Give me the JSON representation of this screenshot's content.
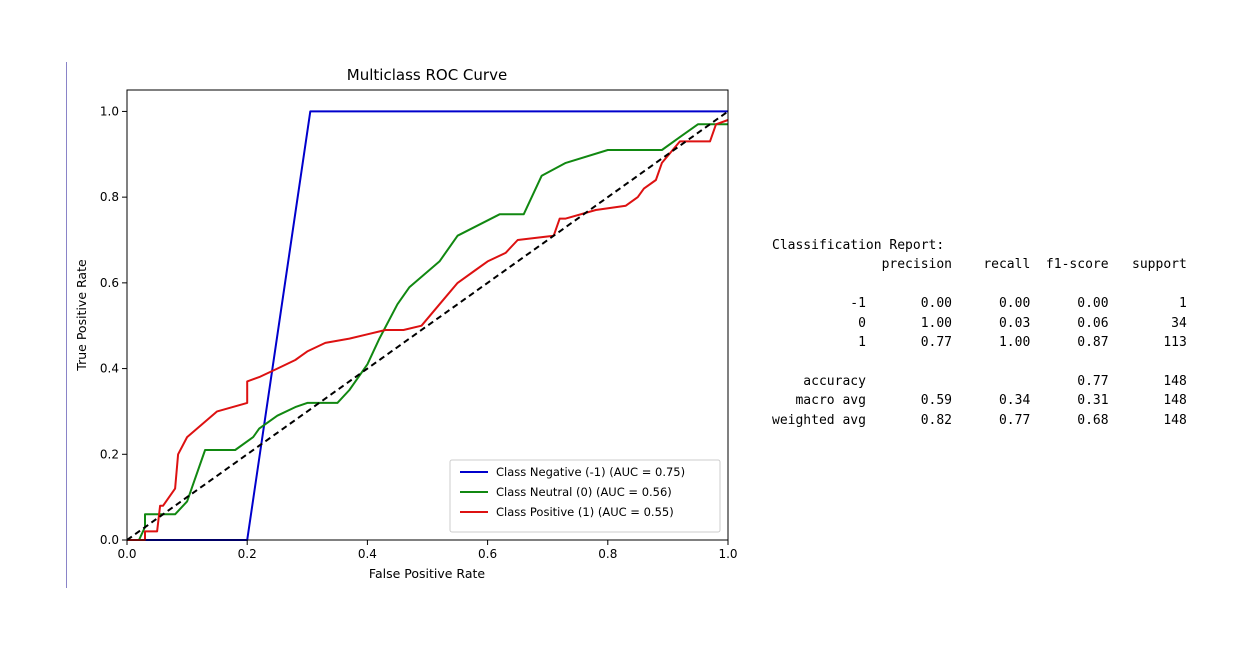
{
  "chart_data": {
    "type": "line",
    "title": "Multiclass ROC Curve",
    "xlabel": "False Positive Rate",
    "ylabel": "True Positive Rate",
    "xlim": [
      0.0,
      1.0
    ],
    "ylim": [
      0.0,
      1.05
    ],
    "xticks": [
      "0.0",
      "0.2",
      "0.4",
      "0.6",
      "0.8",
      "1.0"
    ],
    "yticks": [
      "0.0",
      "0.2",
      "0.4",
      "0.6",
      "0.8",
      "1.0"
    ],
    "grid": false,
    "legend": "lower-right",
    "series": [
      {
        "name": "Class Negative (-1) (AUC = 0.75)",
        "color": "#0000cc",
        "x": [
          0.0,
          0.2,
          0.305,
          1.0
        ],
        "y": [
          0.0,
          0.0,
          1.0,
          1.0
        ]
      },
      {
        "name": "Class Neutral (0) (AUC = 0.56)",
        "color": "#118811",
        "x": [
          0.0,
          0.02,
          0.03,
          0.03,
          0.06,
          0.08,
          0.1,
          0.13,
          0.18,
          0.21,
          0.22,
          0.25,
          0.28,
          0.3,
          0.34,
          0.35,
          0.37,
          0.4,
          0.42,
          0.45,
          0.47,
          0.52,
          0.55,
          0.62,
          0.66,
          0.69,
          0.73,
          0.8,
          0.86,
          0.89,
          0.92,
          0.95,
          1.0
        ],
        "y": [
          0.0,
          0.0,
          0.03,
          0.06,
          0.06,
          0.06,
          0.09,
          0.21,
          0.21,
          0.24,
          0.26,
          0.29,
          0.31,
          0.32,
          0.32,
          0.32,
          0.35,
          0.41,
          0.47,
          0.55,
          0.59,
          0.65,
          0.71,
          0.76,
          0.76,
          0.85,
          0.88,
          0.91,
          0.91,
          0.91,
          0.94,
          0.97,
          0.97
        ]
      },
      {
        "name": "Class Positive (1) (AUC = 0.55)",
        "color": "#dd1111",
        "x": [
          0.0,
          0.03,
          0.03,
          0.05,
          0.055,
          0.06,
          0.08,
          0.085,
          0.1,
          0.15,
          0.2,
          0.2,
          0.22,
          0.25,
          0.28,
          0.29,
          0.3,
          0.33,
          0.37,
          0.4,
          0.43,
          0.46,
          0.49,
          0.52,
          0.55,
          0.58,
          0.6,
          0.63,
          0.65,
          0.71,
          0.72,
          0.73,
          0.78,
          0.83,
          0.85,
          0.86,
          0.88,
          0.89,
          0.92,
          0.97,
          0.98,
          1.0
        ],
        "y": [
          0.0,
          0.0,
          0.02,
          0.02,
          0.08,
          0.08,
          0.12,
          0.2,
          0.24,
          0.3,
          0.32,
          0.37,
          0.38,
          0.4,
          0.42,
          0.43,
          0.44,
          0.46,
          0.47,
          0.48,
          0.49,
          0.49,
          0.5,
          0.55,
          0.6,
          0.63,
          0.65,
          0.67,
          0.7,
          0.71,
          0.75,
          0.75,
          0.77,
          0.78,
          0.8,
          0.82,
          0.84,
          0.88,
          0.93,
          0.93,
          0.97,
          0.98
        ]
      },
      {
        "color": "#000000",
        "style": "dashed",
        "x": [
          0.0,
          1.0
        ],
        "y": [
          0.0,
          1.0
        ]
      }
    ]
  },
  "report": {
    "lines": [
      "Classification Report:",
      "              precision    recall  f1-score   support",
      "",
      "          -1       0.00      0.00      0.00         1",
      "           0       1.00      0.03      0.06        34",
      "           1       0.77      1.00      0.87       113",
      "",
      "    accuracy                           0.77       148",
      "   macro avg       0.59      0.34      0.31       148",
      "weighted avg       0.82      0.77      0.68       148"
    ]
  }
}
